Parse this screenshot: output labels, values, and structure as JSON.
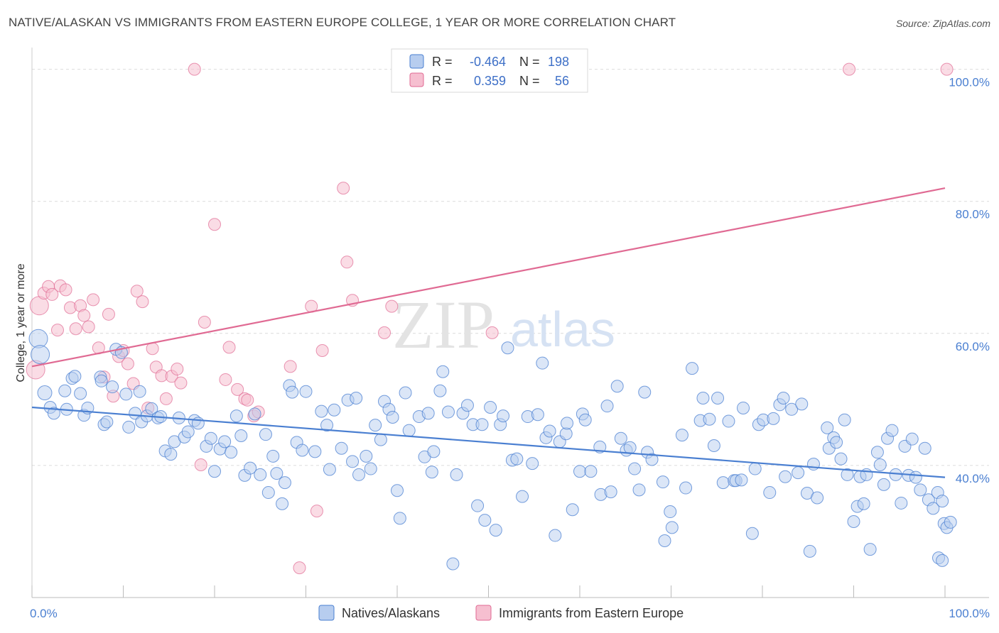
{
  "title": "NATIVE/ALASKAN VS IMMIGRANTS FROM EASTERN EUROPE COLLEGE, 1 YEAR OR MORE CORRELATION CHART",
  "source": "Source: ZipAtlas.com",
  "watermark": {
    "zip": "ZIP",
    "atlas": "atlas"
  },
  "colors": {
    "blue": "#4a7fd1",
    "blue_fill": "#b7cdef",
    "pink": "#e06a93",
    "pink_fill": "#f6bfd0"
  },
  "legend": {
    "rows": [
      {
        "r_label": "R =",
        "r_value": "-0.464",
        "n_label": "N =",
        "n_value": "198"
      },
      {
        "r_label": "R =",
        "r_value": "0.359",
        "n_label": "N =",
        "n_value": "56"
      }
    ]
  },
  "chart_data": {
    "type": "scatter",
    "title": "NATIVE/ALASKAN VS IMMIGRANTS FROM EASTERN EUROPE COLLEGE, 1 YEAR OR MORE CORRELATION CHART",
    "xlabel": "",
    "ylabel": "College, 1 year or more",
    "xlim": [
      0,
      100
    ],
    "ylim": [
      20,
      102
    ],
    "x_tick_labels": [
      "0.0%",
      "100.0%"
    ],
    "y_ticks": [
      40,
      60,
      80,
      100
    ],
    "y_tick_labels": [
      "40.0%",
      "60.0%",
      "80.0%",
      "100.0%"
    ],
    "grid": true,
    "legend_position": "top-center",
    "series": [
      {
        "name": "Natives/Alaskans",
        "R": -0.464,
        "N": 198,
        "trend": {
          "x": [
            0,
            100
          ],
          "y": [
            48.8,
            38.2
          ]
        },
        "points": [
          [
            0.7,
            59.2
          ],
          [
            0.9,
            56.8
          ],
          [
            1.4,
            51
          ],
          [
            2,
            48.8
          ],
          [
            2.4,
            47.9
          ],
          [
            3.6,
            51.3
          ],
          [
            3.8,
            48.5
          ],
          [
            4.4,
            53.2
          ],
          [
            4.7,
            53.5
          ],
          [
            5.3,
            50.9
          ],
          [
            5.7,
            47.6
          ],
          [
            6.1,
            48.7
          ],
          [
            7.5,
            53.4
          ],
          [
            7.6,
            52.8
          ],
          [
            7.9,
            46.2
          ],
          [
            8.2,
            46.6
          ],
          [
            8.8,
            51.9
          ],
          [
            9.2,
            57.6
          ],
          [
            9.8,
            57.1
          ],
          [
            10.3,
            50.8
          ],
          [
            10.6,
            45.8
          ],
          [
            11.3,
            47.9
          ],
          [
            11.8,
            51.2
          ],
          [
            12,
            46.6
          ],
          [
            12.6,
            47.5
          ],
          [
            13.1,
            48.6
          ],
          [
            13.8,
            47.2
          ],
          [
            14.1,
            47.4
          ],
          [
            14.6,
            42.2
          ],
          [
            15.2,
            41.7
          ],
          [
            15.6,
            43.6
          ],
          [
            16.1,
            47.2
          ],
          [
            16.7,
            44.3
          ],
          [
            17.1,
            45.1
          ],
          [
            17.8,
            46.8
          ],
          [
            18.2,
            46.4
          ],
          [
            19.1,
            42.9
          ],
          [
            19.6,
            44.1
          ],
          [
            20,
            39.1
          ],
          [
            20.6,
            42.5
          ],
          [
            21.1,
            43.6
          ],
          [
            21.8,
            42
          ],
          [
            22.4,
            47.5
          ],
          [
            22.9,
            44.5
          ],
          [
            23.3,
            38.5
          ],
          [
            23.9,
            39.6
          ],
          [
            24.4,
            47.8
          ],
          [
            25,
            38.6
          ],
          [
            25.6,
            44.7
          ],
          [
            25.9,
            35.9
          ],
          [
            26.4,
            41.4
          ],
          [
            26.8,
            38.8
          ],
          [
            27.4,
            34.2
          ],
          [
            27.7,
            37.4
          ],
          [
            28.2,
            52.1
          ],
          [
            28.5,
            51.1
          ],
          [
            29,
            43.5
          ],
          [
            29.6,
            42.3
          ],
          [
            30,
            51.2
          ],
          [
            31,
            42.1
          ],
          [
            31.7,
            48.2
          ],
          [
            32.3,
            46.1
          ],
          [
            32.6,
            39.4
          ],
          [
            33.1,
            48.4
          ],
          [
            33.9,
            42.6
          ],
          [
            34.6,
            49.9
          ],
          [
            35.1,
            40.6
          ],
          [
            35.5,
            50.2
          ],
          [
            35.8,
            38.6
          ],
          [
            36.6,
            41.4
          ],
          [
            37.1,
            39.5
          ],
          [
            37.6,
            46.1
          ],
          [
            38.2,
            43.9
          ],
          [
            38.6,
            49.7
          ],
          [
            39.1,
            48.5
          ],
          [
            39.5,
            47.3
          ],
          [
            40,
            36.2
          ],
          [
            40.3,
            32
          ],
          [
            40.9,
            51
          ],
          [
            41.3,
            45.3
          ],
          [
            42.4,
            47.4
          ],
          [
            43,
            41.3
          ],
          [
            43.4,
            47.9
          ],
          [
            43.8,
            39
          ],
          [
            44,
            42.1
          ],
          [
            44.7,
            51.3
          ],
          [
            45,
            54.2
          ],
          [
            45.6,
            48.1
          ],
          [
            46.1,
            25.1
          ],
          [
            46.5,
            38.6
          ],
          [
            47.2,
            47.9
          ],
          [
            47.7,
            49.1
          ],
          [
            48.3,
            46.2
          ],
          [
            48.8,
            33.9
          ],
          [
            49.3,
            46.2
          ],
          [
            49.6,
            31.7
          ],
          [
            50.2,
            48.8
          ],
          [
            50.8,
            30.2
          ],
          [
            51.3,
            46.2
          ],
          [
            51.6,
            47.5
          ],
          [
            52.1,
            57.8
          ],
          [
            52.6,
            40.8
          ],
          [
            53.1,
            41
          ],
          [
            53.7,
            35.3
          ],
          [
            54.3,
            47.4
          ],
          [
            54.8,
            40.3
          ],
          [
            55.4,
            47.7
          ],
          [
            55.9,
            55.5
          ],
          [
            56.3,
            44.2
          ],
          [
            56.7,
            45.2
          ],
          [
            57.3,
            29.4
          ],
          [
            57.8,
            43.6
          ],
          [
            58.5,
            44.8
          ],
          [
            58.6,
            46.4
          ],
          [
            59.2,
            33.3
          ],
          [
            60,
            39.1
          ],
          [
            60.3,
            47.8
          ],
          [
            60.6,
            46.9
          ],
          [
            61.2,
            39.1
          ],
          [
            62.2,
            42.8
          ],
          [
            62.3,
            35.6
          ],
          [
            63,
            49
          ],
          [
            63.4,
            36
          ],
          [
            64.1,
            52
          ],
          [
            64.5,
            44.1
          ],
          [
            65.1,
            42.3
          ],
          [
            65.5,
            42.7
          ],
          [
            66,
            39.5
          ],
          [
            66.5,
            36.3
          ],
          [
            67.1,
            51.1
          ],
          [
            67.4,
            42
          ],
          [
            67.9,
            40.9
          ],
          [
            69.1,
            37.5
          ],
          [
            69.3,
            28.6
          ],
          [
            69.9,
            33
          ],
          [
            70.1,
            30.6
          ],
          [
            71.2,
            44.6
          ],
          [
            71.6,
            36.6
          ],
          [
            72.3,
            54.7
          ],
          [
            73.2,
            46.8
          ],
          [
            73.5,
            50.2
          ],
          [
            74.2,
            47
          ],
          [
            74.7,
            43
          ],
          [
            75.1,
            50.2
          ],
          [
            75.7,
            37.4
          ],
          [
            76.3,
            46.7
          ],
          [
            76.9,
            37.7
          ],
          [
            77.1,
            37.7
          ],
          [
            77.7,
            37.8
          ],
          [
            77.9,
            48.7
          ],
          [
            78.9,
            29.7
          ],
          [
            79.2,
            39.5
          ],
          [
            79.6,
            46.2
          ],
          [
            80.1,
            46.9
          ],
          [
            80.8,
            35.9
          ],
          [
            81.2,
            47.1
          ],
          [
            81.9,
            49.2
          ],
          [
            82.3,
            50.2
          ],
          [
            82.5,
            38.3
          ],
          [
            83.2,
            48.5
          ],
          [
            83.9,
            38.9
          ],
          [
            84.3,
            49.3
          ],
          [
            84.9,
            35.8
          ],
          [
            85.2,
            27
          ],
          [
            85.6,
            40.2
          ],
          [
            86,
            35.1
          ],
          [
            87.1,
            45.7
          ],
          [
            87.3,
            42.6
          ],
          [
            87.8,
            44.2
          ],
          [
            88.1,
            43.5
          ],
          [
            88.6,
            41
          ],
          [
            89,
            46.9
          ],
          [
            89.3,
            38.6
          ],
          [
            90,
            31.5
          ],
          [
            90.4,
            33.8
          ],
          [
            90.7,
            38.3
          ],
          [
            91.1,
            34.2
          ],
          [
            91.4,
            38.6
          ],
          [
            91.8,
            27.3
          ],
          [
            92.6,
            42
          ],
          [
            92.9,
            40.1
          ],
          [
            93.3,
            37.1
          ],
          [
            93.7,
            44.1
          ],
          [
            94.2,
            45.3
          ],
          [
            94.6,
            38.6
          ],
          [
            95.2,
            34.3
          ],
          [
            95.6,
            42.9
          ],
          [
            96,
            38.5
          ],
          [
            96.4,
            44
          ],
          [
            96.8,
            38.2
          ],
          [
            97.3,
            36.3
          ],
          [
            97.8,
            42.6
          ],
          [
            98.2,
            34.8
          ],
          [
            98.7,
            33.5
          ],
          [
            99.2,
            35.9
          ],
          [
            99.7,
            34.6
          ],
          [
            99.9,
            31.2
          ],
          [
            100.2,
            30.6
          ],
          [
            100.6,
            31.4
          ],
          [
            99.3,
            26
          ],
          [
            99.7,
            25.6
          ]
        ]
      },
      {
        "name": "Immigrants from Eastern Europe",
        "R": 0.359,
        "N": 56,
        "trend": {
          "x": [
            0,
            100
          ],
          "y": [
            55,
            82
          ]
        },
        "points": [
          [
            0.4,
            54.5
          ],
          [
            0.8,
            64.2
          ],
          [
            1.3,
            66.1
          ],
          [
            1.8,
            67.1
          ],
          [
            2.2,
            65.9
          ],
          [
            2.8,
            60.5
          ],
          [
            3.1,
            67.2
          ],
          [
            3.7,
            66.6
          ],
          [
            4.2,
            63.9
          ],
          [
            4.8,
            60.7
          ],
          [
            5.3,
            64.2
          ],
          [
            5.7,
            62.7
          ],
          [
            6.2,
            61
          ],
          [
            6.7,
            65.1
          ],
          [
            7.3,
            57.8
          ],
          [
            7.9,
            53.4
          ],
          [
            8.4,
            62.9
          ],
          [
            8.9,
            50.5
          ],
          [
            9.5,
            56.5
          ],
          [
            10,
            57.4
          ],
          [
            10.5,
            55.4
          ],
          [
            11.1,
            52.4
          ],
          [
            11.5,
            66.4
          ],
          [
            12.1,
            64.8
          ],
          [
            12.7,
            48.7
          ],
          [
            13.2,
            57.7
          ],
          [
            13.6,
            54.9
          ],
          [
            14.2,
            53.6
          ],
          [
            14.7,
            50.1
          ],
          [
            15.3,
            53.5
          ],
          [
            15.9,
            54.6
          ],
          [
            16.3,
            52.5
          ],
          [
            17.8,
            100
          ],
          [
            18.5,
            40.1
          ],
          [
            18.9,
            61.7
          ],
          [
            20,
            76.5
          ],
          [
            21.2,
            53
          ],
          [
            21.6,
            57.9
          ],
          [
            22.5,
            51.5
          ],
          [
            23.3,
            50.1
          ],
          [
            23.6,
            49.9
          ],
          [
            24.3,
            47.5
          ],
          [
            24.8,
            48.1
          ],
          [
            28.3,
            55
          ],
          [
            29.3,
            24.5
          ],
          [
            30.6,
            64.1
          ],
          [
            31.2,
            33.1
          ],
          [
            31.8,
            57.4
          ],
          [
            34.1,
            82
          ],
          [
            34.5,
            70.8
          ],
          [
            35.1,
            65
          ],
          [
            38.6,
            60.1
          ],
          [
            39.4,
            64.1
          ],
          [
            50.4,
            60.1
          ],
          [
            89.5,
            100
          ],
          [
            100.2,
            100
          ]
        ]
      }
    ]
  },
  "bottom_legend": [
    {
      "label": "Natives/Alaskans"
    },
    {
      "label": "Immigrants from Eastern Europe"
    }
  ]
}
